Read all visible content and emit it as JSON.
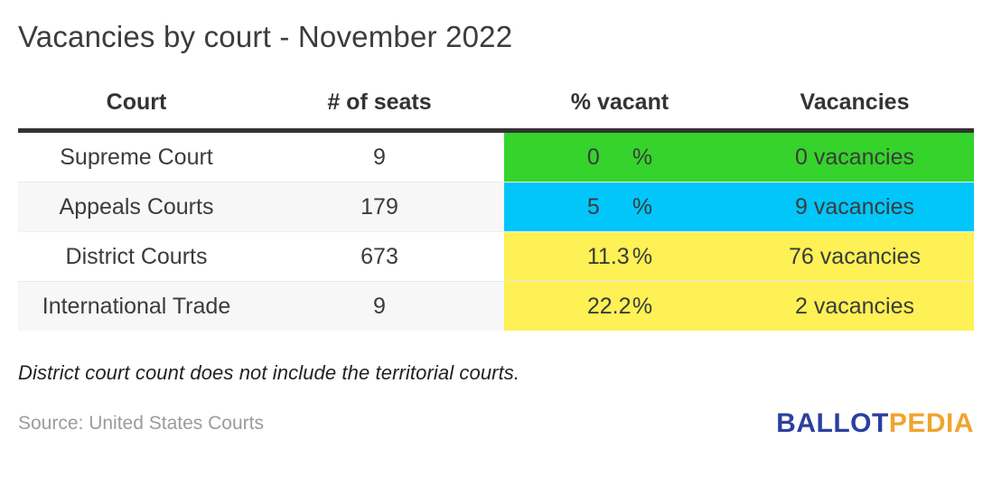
{
  "title": "Vacancies by court - November 2022",
  "table": {
    "columns": [
      "Court",
      "# of seats",
      "% vacant",
      "Vacancies"
    ],
    "rows": [
      {
        "court": "Supreme Court",
        "seats": "9",
        "pct_value": "0",
        "pct_unit": "%",
        "vacancies": "0 vacancies",
        "highlight": "#35d32b"
      },
      {
        "court": "Appeals Courts",
        "seats": "179",
        "pct_value": "5",
        "pct_unit": "%",
        "vacancies": "9 vacancies",
        "highlight": "#00c6fa"
      },
      {
        "court": "District Courts",
        "seats": "673",
        "pct_value": "11.3",
        "pct_unit": "%",
        "vacancies": "76 vacancies",
        "highlight": "#fdf155"
      },
      {
        "court": "International Trade",
        "seats": "9",
        "pct_value": "22.2",
        "pct_unit": "%",
        "vacancies": "2 vacancies",
        "highlight": "#fdf155"
      }
    ]
  },
  "note": "District court count does not include the territorial courts.",
  "source": "Source: United States Courts",
  "logo": {
    "part1": "BALLOT",
    "part2": "PEDIA",
    "blue": "#2c3f9f",
    "orange": "#f0a42e"
  },
  "colors": {
    "green": "#35d32b",
    "cyan": "#00c6fa",
    "yellow": "#fdf155",
    "header_rule": "#333333",
    "stripe": "#f7f7f7",
    "text": "#3b3b3b",
    "source_gray": "#9b9b9b"
  },
  "chart_data": {
    "type": "table",
    "title": "Vacancies by court - November 2022",
    "columns": [
      "Court",
      "# of seats",
      "% vacant",
      "Vacancies"
    ],
    "rows": [
      [
        "Supreme Court",
        9,
        "0 %",
        "0 vacancies"
      ],
      [
        "Appeals Courts",
        179,
        "5 %",
        "9 vacancies"
      ],
      [
        "District Courts",
        673,
        "11.3%",
        "76 vacancies"
      ],
      [
        "International Trade",
        9,
        "22.2%",
        "2 vacancies"
      ]
    ],
    "pct_vacant_values": [
      0,
      5,
      11.3,
      22.2
    ],
    "vacancy_counts": [
      0,
      9,
      76,
      2
    ],
    "row_highlight_colors": [
      "#35d32b",
      "#00c6fa",
      "#fdf155",
      "#fdf155"
    ],
    "note": "District court count does not include the territorial courts.",
    "source": "United States Courts"
  }
}
